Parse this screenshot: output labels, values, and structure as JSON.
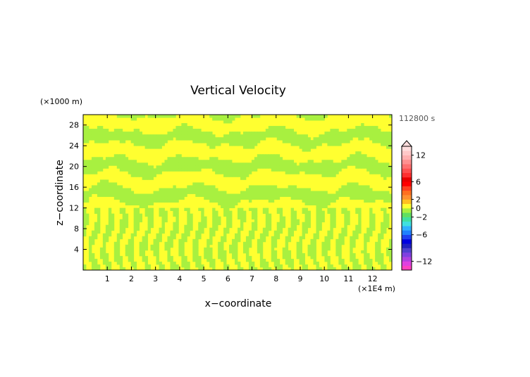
{
  "chart_data": {
    "type": "heatmap",
    "title": "Vertical Velocity",
    "xlabel": "x−coordinate",
    "ylabel": "z−coordinate",
    "x_unit": "(×1E4 m)",
    "y_unit": "(×1000 m)",
    "time_label": "112800 s",
    "x_ticks": [
      1,
      2,
      3,
      4,
      5,
      6,
      7,
      8,
      9,
      10,
      11,
      12
    ],
    "y_ticks": [
      4,
      8,
      12,
      16,
      20,
      24,
      28
    ],
    "xlim": [
      0,
      12.8
    ],
    "ylim": [
      0,
      30
    ],
    "field_description_colors": {
      "near_zero_positive": "#ffff30",
      "near_zero_negative": "#a8f040"
    },
    "colorbar": {
      "levels": [
        -14,
        -13,
        -12,
        -11,
        -10,
        -9,
        -8,
        -7,
        -6,
        -5,
        -4,
        -3,
        -2,
        -1,
        0,
        1,
        2,
        3,
        4,
        5,
        6,
        7,
        8,
        9,
        10,
        11,
        12,
        13,
        14
      ],
      "tick_labels": [
        "12",
        "6",
        "2",
        "0",
        "−2",
        "−6",
        "−12"
      ],
      "tick_values": [
        12,
        6,
        2,
        0,
        -2,
        -6,
        -12
      ],
      "colors": [
        "#ff40c0",
        "#e040e0",
        "#b040e0",
        "#8040e0",
        "#5040d0",
        "#2020c0",
        "#0000e0",
        "#2040f0",
        "#2080ff",
        "#30b0ff",
        "#40e0e0",
        "#40e0a0",
        "#60e060",
        "#a8f040",
        "#ffff30",
        "#ffc020",
        "#ff9030",
        "#ff7020",
        "#ff4020",
        "#ff0000",
        "#e80000",
        "#ff3030",
        "#ff5050",
        "#ff7070",
        "#ff9090",
        "#ffb0b0",
        "#ffc8c8",
        "#ffdede"
      ],
      "extend": "max"
    }
  }
}
